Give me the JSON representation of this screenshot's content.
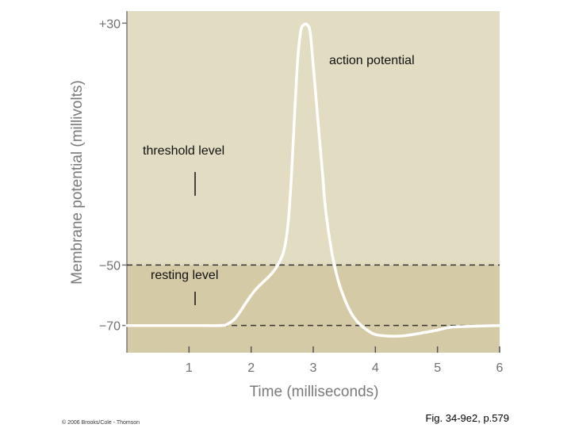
{
  "chart_data": {
    "type": "line",
    "title": "",
    "xlabel": "Time (milliseconds)",
    "ylabel": "Membrane potential (millivolts)",
    "xlim": [
      0,
      6
    ],
    "ylim": [
      -79,
      34
    ],
    "x_ticks": [
      1,
      2,
      3,
      4,
      5,
      6
    ],
    "y_ticks": [
      30,
      -50,
      -70
    ],
    "y_tick_labels": [
      "+30",
      "−50",
      "−70"
    ],
    "series": [
      {
        "x": [
          0,
          0.5,
          1,
          1.5,
          1.62,
          1.75,
          1.9,
          2.0,
          2.1,
          2.2,
          2.3,
          2.4,
          2.5,
          2.55,
          2.6,
          2.65,
          2.7,
          2.75,
          2.8,
          2.85,
          2.9,
          2.95,
          3.0,
          3.05,
          3.1,
          3.15,
          3.2,
          3.3,
          3.4,
          3.5,
          3.6,
          3.7,
          3.8,
          3.9,
          4.0,
          4.2,
          4.4,
          4.6,
          4.8,
          5.0,
          5.2,
          5.5,
          6.0
        ],
        "y": [
          -70,
          -70,
          -70,
          -70,
          -69.5,
          -67.5,
          -63,
          -60,
          -57.5,
          -55.5,
          -53.5,
          -51,
          -47,
          -43,
          -35,
          -20,
          0,
          18,
          27.5,
          29.5,
          29.5,
          27,
          16,
          4,
          -8,
          -20,
          -32,
          -46,
          -55,
          -61,
          -65.5,
          -68.5,
          -70.5,
          -72,
          -73,
          -73.5,
          -73.5,
          -73,
          -72.3,
          -71.5,
          -70.6,
          -70.3,
          -70
        ]
      }
    ],
    "reference_lines": [
      {
        "y": -50,
        "style": "dashed"
      },
      {
        "y": -70,
        "style": "dashed"
      }
    ],
    "regions": [
      {
        "from": -50,
        "to": 34,
        "color": "#e2dcc2"
      },
      {
        "from": -79,
        "to": -50,
        "color": "#d4cba6"
      }
    ],
    "annotations": [
      {
        "text": "action potential",
        "x": 3.25,
        "y": 25
      },
      {
        "text": "threshold level",
        "x": 1.0,
        "y": -44
      },
      {
        "text": "resting level",
        "x": 1.1,
        "y": -66
      }
    ],
    "colors": {
      "line": "#ffffff",
      "reference": "#333333",
      "axis_text": "#6f6f6f"
    },
    "grid": false,
    "legend": "none"
  },
  "footer": {
    "copyright": "© 2006 Brooks/Cole - Thomson",
    "figure_ref": "Fig. 34-9e2, p.579"
  }
}
